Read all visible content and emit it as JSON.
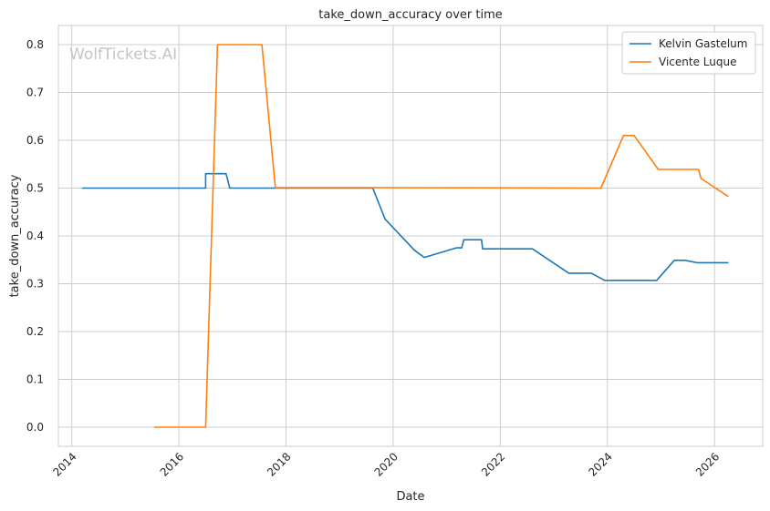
{
  "watermark": "WolfTickets.AI",
  "chart_data": {
    "type": "line",
    "title": "take_down_accuracy over time",
    "xlabel": "Date",
    "ylabel": "take_down_accuracy",
    "xlim": [
      2013.75,
      2026.9
    ],
    "ylim": [
      -0.04,
      0.84
    ],
    "x_ticks": [
      2014,
      2016,
      2018,
      2020,
      2022,
      2024,
      2026
    ],
    "y_ticks": [
      0.0,
      0.1,
      0.2,
      0.3,
      0.4,
      0.5,
      0.6,
      0.7,
      0.8
    ],
    "y_tick_labels": [
      "0.0",
      "0.1",
      "0.2",
      "0.3",
      "0.4",
      "0.5",
      "0.6",
      "0.7",
      "0.8"
    ],
    "grid": true,
    "legend_position": "top-right",
    "series": [
      {
        "name": "Kelvin Gastelum",
        "color": "#1f77b4",
        "x": [
          2014.2,
          2016.5,
          2016.5,
          2016.88,
          2016.95,
          2019.62,
          2019.85,
          2020.4,
          2020.58,
          2021.18,
          2021.28,
          2021.32,
          2021.65,
          2021.67,
          2022.6,
          2023.28,
          2023.7,
          2023.95,
          2024.92,
          2025.25,
          2025.45,
          2025.68,
          2026.25
        ],
        "y": [
          0.5,
          0.5,
          0.53,
          0.53,
          0.5,
          0.5,
          0.435,
          0.37,
          0.355,
          0.375,
          0.375,
          0.392,
          0.392,
          0.373,
          0.373,
          0.322,
          0.322,
          0.307,
          0.307,
          0.349,
          0.349,
          0.344,
          0.344
        ]
      },
      {
        "name": "Vicente Luque",
        "color": "#ff7f0e",
        "x": [
          2015.55,
          2016.5,
          2016.72,
          2017.55,
          2017.8,
          2019.62,
          2023.88,
          2024.3,
          2024.5,
          2024.95,
          2025.7,
          2025.75,
          2026.25
        ],
        "y": [
          0.0,
          0.0,
          0.8,
          0.8,
          0.501,
          0.501,
          0.5,
          0.61,
          0.61,
          0.539,
          0.539,
          0.52,
          0.483
        ]
      }
    ]
  }
}
